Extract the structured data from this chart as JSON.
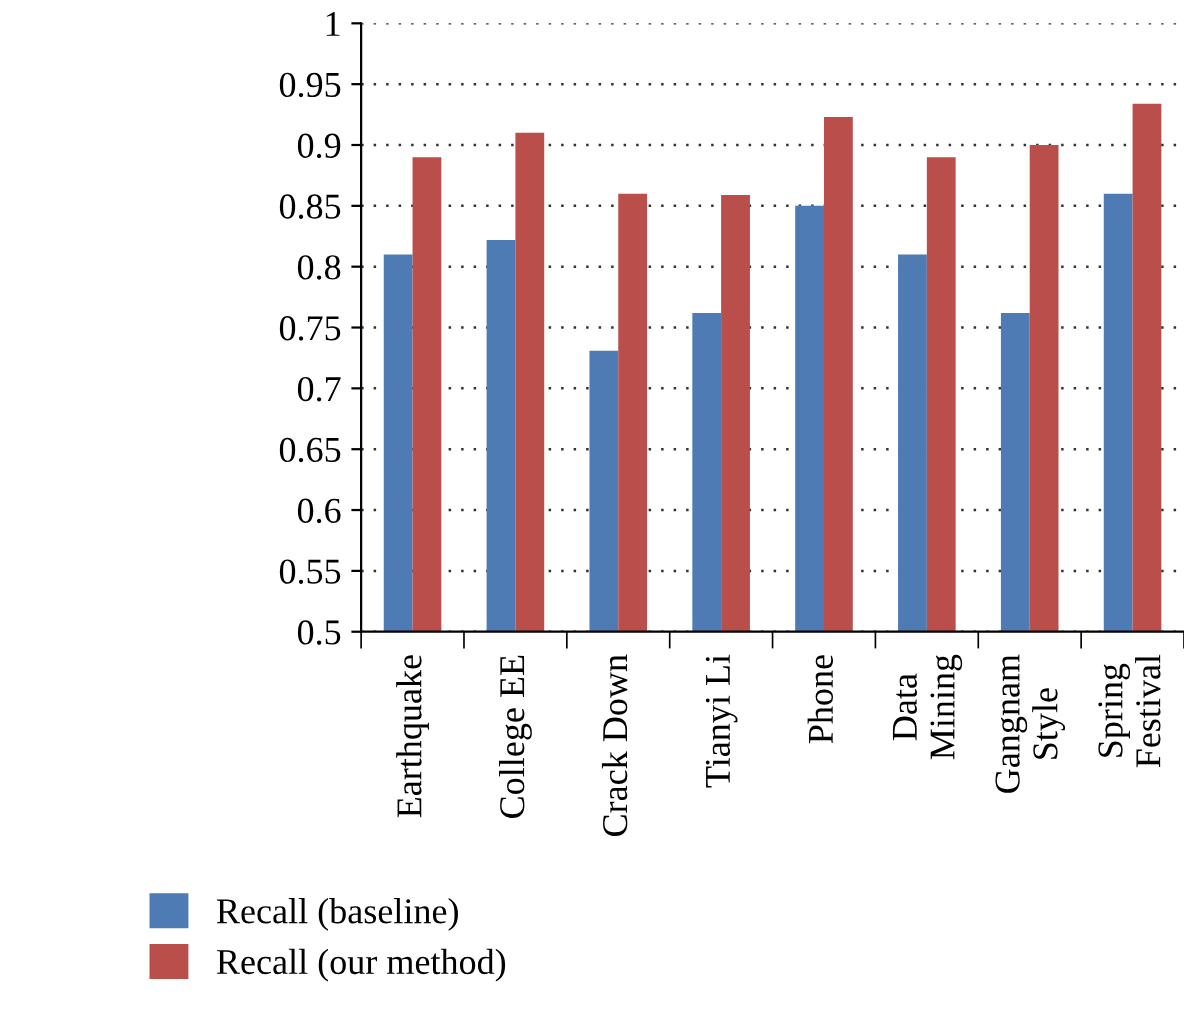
{
  "chart_data": {
    "type": "bar",
    "categories": [
      "Earthquake",
      "College EE",
      "Crack Down",
      "Tianyi Li",
      "Phone",
      "Data\nMining",
      "Gangnam\nStyle",
      "Spring\nFestival"
    ],
    "series": [
      {
        "name": "Recall (baseline)",
        "color": "#4f7bb5",
        "values": [
          0.81,
          0.822,
          0.731,
          0.762,
          0.85,
          0.81,
          0.762,
          0.86
        ]
      },
      {
        "name": "Recall (our method)",
        "color": "#b94e4b",
        "values": [
          0.89,
          0.91,
          0.86,
          0.859,
          0.923,
          0.89,
          0.9,
          0.934
        ]
      }
    ],
    "ylim": [
      0.5,
      1
    ],
    "yticks": [
      0.5,
      0.55,
      0.6,
      0.65,
      0.7,
      0.75,
      0.8,
      0.85,
      0.9,
      0.95,
      1
    ],
    "grid": "y",
    "legend": "bottom left"
  }
}
